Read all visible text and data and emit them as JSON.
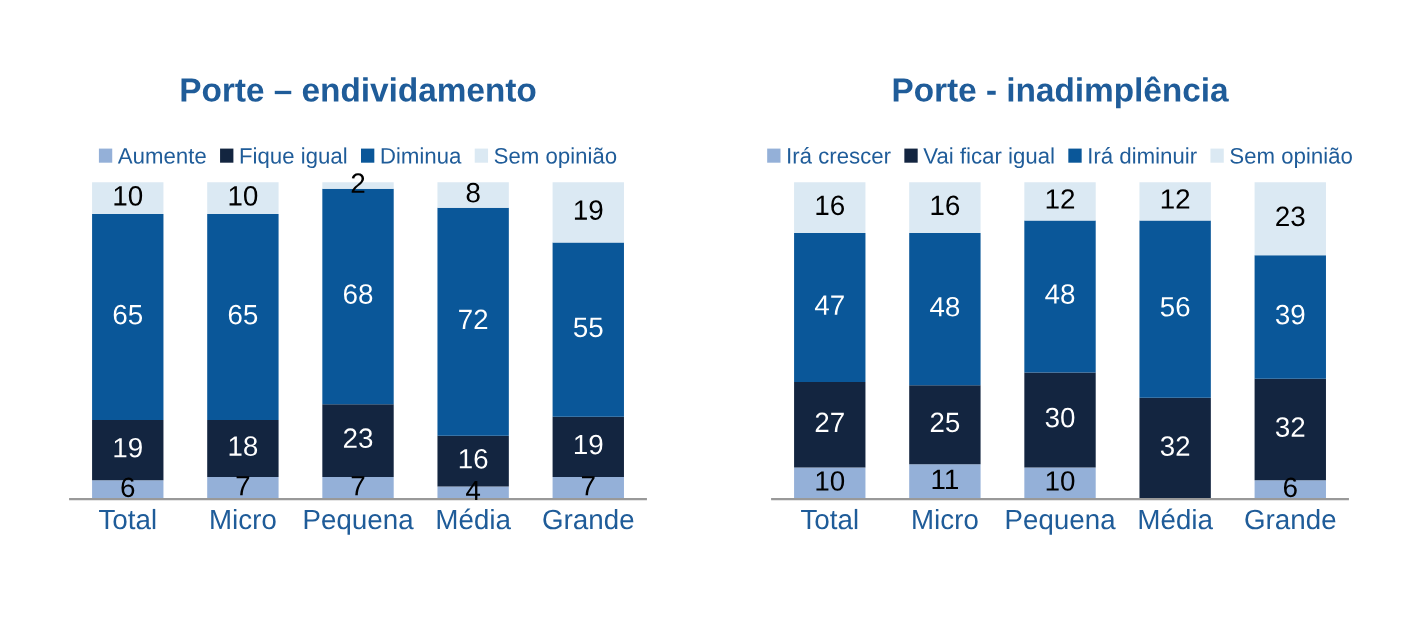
{
  "chart_data": [
    {
      "type": "bar",
      "title": "Porte – endividamento",
      "stacked": true,
      "data_labels": true,
      "legend": "top",
      "grid": false,
      "tick_labels": "x",
      "categories": [
        "Total",
        "Micro",
        "Pequena",
        "Média",
        "Grande"
      ],
      "series": [
        {
          "name": "Aumente",
          "color": "#94b0d8",
          "values": [
            6,
            7,
            7,
            4,
            7
          ]
        },
        {
          "name": "Fique igual",
          "color": "#132540",
          "values": [
            19,
            18,
            23,
            16,
            19
          ]
        },
        {
          "name": "Diminua",
          "color": "#0a5799",
          "values": [
            65,
            65,
            68,
            72,
            55
          ]
        },
        {
          "name": "Sem opinião",
          "color": "#dbe9f3",
          "values": [
            10,
            10,
            2,
            8,
            19
          ]
        }
      ]
    },
    {
      "type": "bar",
      "title": "Porte - inadimplência",
      "stacked": true,
      "data_labels": true,
      "legend": "top",
      "grid": false,
      "tick_labels": "x",
      "categories": [
        "Total",
        "Micro",
        "Pequena",
        "Média",
        "Grande"
      ],
      "series": [
        {
          "name": "Irá crescer",
          "color": "#94b0d8",
          "values": [
            10,
            11,
            10,
            0,
            6
          ],
          "value_labels": [
            "10",
            "11",
            "10",
            null,
            "6"
          ]
        },
        {
          "name": "Vai ficar igual",
          "color": "#132540",
          "values": [
            27,
            25,
            30,
            32,
            32
          ]
        },
        {
          "name": "Irá diminuir",
          "color": "#0a5799",
          "values": [
            47,
            48,
            48,
            56,
            39
          ]
        },
        {
          "name": "Sem opinião",
          "color": "#dbe9f3",
          "values": [
            16,
            16,
            12,
            12,
            23
          ]
        }
      ]
    }
  ]
}
